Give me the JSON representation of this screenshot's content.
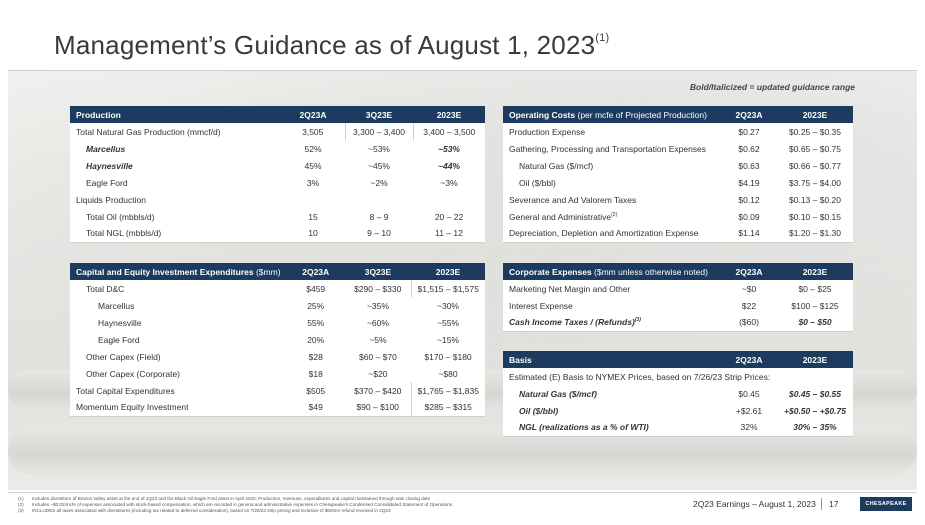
{
  "title": "Management’s Guidance as of August 1, 2023",
  "title_footnote": "(1)",
  "legend_note": "Bold/Italicized = updated guidance range",
  "production": {
    "header": [
      "Production",
      "2Q23A",
      "3Q23E",
      "2023E"
    ],
    "rows": [
      {
        "label": "Total Natural Gas Production (mmcf/d)",
        "a": "3,505",
        "b": "3,300 – 3,400",
        "c": "3,400 – 3,500"
      },
      {
        "label": "Marcellus",
        "a": "52%",
        "b": "~53%",
        "c": "~53%"
      },
      {
        "label": "Haynesville",
        "a": "45%",
        "b": "~45%",
        "c": "~44%"
      },
      {
        "label": "Eagle Ford",
        "a": "3%",
        "b": "~2%",
        "c": "~3%"
      },
      {
        "label": "Liquids Production",
        "a": "",
        "b": "",
        "c": ""
      },
      {
        "label": "Total Oil (mbbls/d)",
        "a": "15",
        "b": "8 – 9",
        "c": "20 – 22"
      },
      {
        "label": "Total NGL (mbbls/d)",
        "a": "10",
        "b": "9 – 10",
        "c": "11 – 12"
      }
    ]
  },
  "capex": {
    "header": [
      "Capital and Equity Investment Expenditures",
      "($mm)",
      "2Q23A",
      "3Q23E",
      "2023E"
    ],
    "rows": [
      {
        "label": "Total D&C",
        "a": "$459",
        "b": "$290 – $330",
        "c": "$1,515 – $1,575"
      },
      {
        "label": "Marcellus",
        "a": "25%",
        "b": "~35%",
        "c": "~30%"
      },
      {
        "label": "Haynesville",
        "a": "55%",
        "b": "~60%",
        "c": "~55%"
      },
      {
        "label": "Eagle Ford",
        "a": "20%",
        "b": "~5%",
        "c": "~15%"
      },
      {
        "label": "Other Capex (Field)",
        "a": "$28",
        "b": "$60 – $70",
        "c": "$170 – $180"
      },
      {
        "label": "Other Capex (Corporate)",
        "a": "$18",
        "b": "~$20",
        "c": "~$80"
      },
      {
        "label": "Total Capital Expenditures",
        "a": "$505",
        "b": "$370 – $420",
        "c": "$1,765 – $1,835"
      },
      {
        "label": "Momentum Equity Investment",
        "a": "$49",
        "b": "$90 – $100",
        "c": "$285 – $315"
      }
    ]
  },
  "opcosts": {
    "header": [
      "Operating Costs",
      "(per mcfe of Projected Production)",
      "2Q23A",
      "2023E"
    ],
    "rows": [
      {
        "label": "Production Expense",
        "fn": "",
        "a": "$0.27",
        "c": "$0.25 – $0.35"
      },
      {
        "label": "Gathering, Processing and Transportation Expenses",
        "fn": "",
        "a": "$0.62",
        "c": "$0.65 – $0.75"
      },
      {
        "label": "Natural Gas ($/mcf)",
        "fn": "",
        "a": "$0.63",
        "c": "$0.66 – $0.77"
      },
      {
        "label": "Oil ($/bbl)",
        "fn": "",
        "a": "$4.19",
        "c": "$3.75 – $4.00"
      },
      {
        "label": "Severance and Ad Valorem Taxes",
        "fn": "",
        "a": "$0.12",
        "c": "$0.13 – $0.20"
      },
      {
        "label": "General and Administrative",
        "fn": "(2)",
        "a": "$0.09",
        "c": "$0.10 – $0.15"
      },
      {
        "label": "Depreciation, Depletion and Amortization Expense",
        "fn": "",
        "a": "$1.14",
        "c": "$1.20 – $1.30"
      }
    ]
  },
  "corporate": {
    "header": [
      "Corporate Expenses",
      "($mm unless otherwise noted)",
      "2Q23A",
      "2023E"
    ],
    "rows": [
      {
        "label": "Marketing Net Margin and Other",
        "fn": "",
        "a": "~$0",
        "c": "$0 – $25"
      },
      {
        "label": "Interest Expense",
        "fn": "",
        "a": "$22",
        "c": "$100 – $125"
      },
      {
        "label": "Cash Income Taxes / (Refunds)",
        "fn": "(3)",
        "a": "($60)",
        "c": "$0 – $50"
      }
    ]
  },
  "basis": {
    "header": [
      "Basis",
      "2Q23A",
      "2023E"
    ],
    "note": "Estimated (E) Basis to NYMEX Prices, based on 7/26/23 Strip Prices:",
    "rows": [
      {
        "label": "Natural Gas ($/mcf)",
        "a": "$0.45",
        "c": "$0.45 – $0.55"
      },
      {
        "label": "Oil ($/bbl)",
        "a": "+$2.61",
        "c": "+$0.50 – +$0.75"
      },
      {
        "label": "NGL (realizations as a % of WTI)",
        "a": "32%",
        "c": "30% – 35%"
      }
    ]
  },
  "footnotes": [
    {
      "n": "(1)",
      "text": "Includes divestiture of Brazos Valley asset at the end of 1Q23 and the Black Oil Eagle Ford asset in April 2023; Production, revenues, expenditures and capital maintained through sale closing date"
    },
    {
      "n": "(2)",
      "text": "Includes ~$0.02/mcfe of expenses associated with stock-based compensation, which are recorded in general and administrative expenses in Chesapeake's Condensed Consolidated Statement of Operations"
    },
    {
      "n": "(3)",
      "text": "INCLUDES all taxes associated with divestitures (including tax related to deferred consideration), based on 7/26/23 strip pricing and inclusive of $60mm refund received in 2Q23"
    }
  ],
  "footer": {
    "text": "2Q23 Earnings – August 1, 2023",
    "page": "17",
    "logo": "CHESAPEAKE"
  },
  "colors": {
    "header_bg": "#1d3b5e",
    "header_text": "#ffffff"
  }
}
